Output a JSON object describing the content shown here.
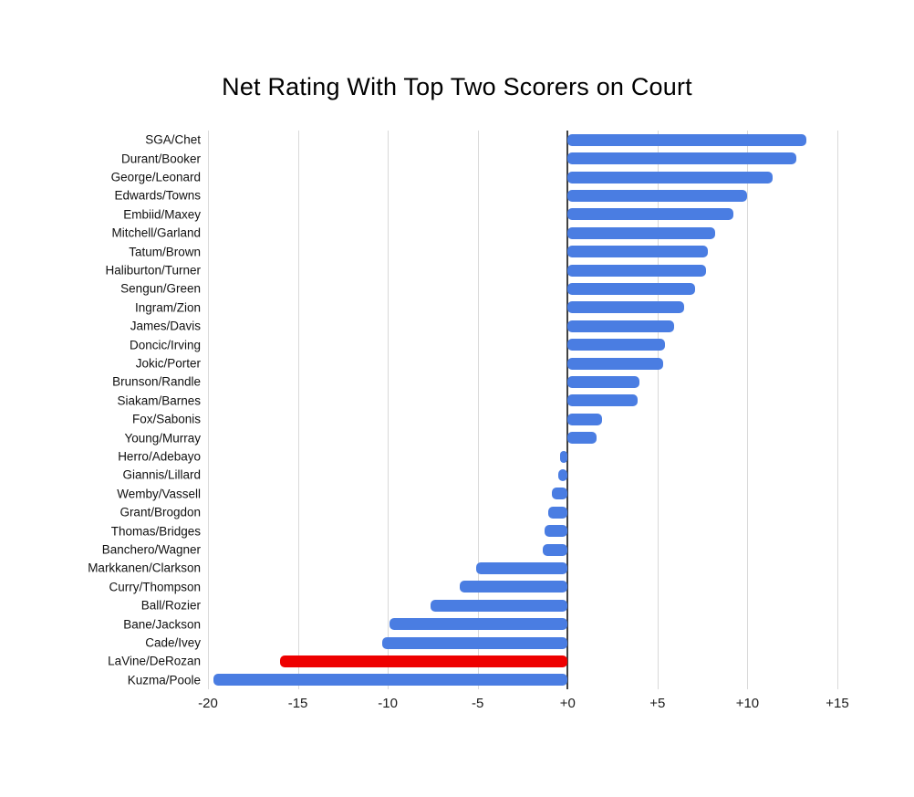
{
  "title": "Net Rating With Top Two Scorers on Court",
  "colors": {
    "bar_default": "#4a7de2",
    "bar_highlight": "#ee0000",
    "gridline": "#d9d9d9",
    "zero_line": "#424242",
    "background": "#ffffff",
    "text": "#000000"
  },
  "chart_data": {
    "type": "bar",
    "orientation": "horizontal",
    "title": "Net Rating With Top Two Scorers on Court",
    "xlabel": "",
    "ylabel": "",
    "xlim": [
      -20,
      15
    ],
    "grid": true,
    "legend_position": "none",
    "x_ticks": [
      {
        "value": -20,
        "label": "-20"
      },
      {
        "value": -15,
        "label": "-15"
      },
      {
        "value": -10,
        "label": "-10"
      },
      {
        "value": -5,
        "label": "-5"
      },
      {
        "value": 0,
        "label": "+0"
      },
      {
        "value": 5,
        "label": "+5"
      },
      {
        "value": 10,
        "label": "+10"
      },
      {
        "value": 15,
        "label": "+15"
      }
    ],
    "highlighted_category": "LaVine/DeRozan",
    "categories": [
      "SGA/Chet",
      "Durant/Booker",
      "George/Leonard",
      "Edwards/Towns",
      "Embiid/Maxey",
      "Mitchell/Garland",
      "Tatum/Brown",
      "Haliburton/Turner",
      "Sengun/Green",
      "Ingram/Zion",
      "James/Davis",
      "Doncic/Irving",
      "Jokic/Porter",
      "Brunson/Randle",
      "Siakam/Barnes",
      "Fox/Sabonis",
      "Young/Murray",
      "Herro/Adebayo",
      "Giannis/Lillard",
      "Wemby/Vassell",
      "Grant/Brogdon",
      "Thomas/Bridges",
      "Banchero/Wagner",
      "Markkanen/Clarkson",
      "Curry/Thompson",
      "Ball/Rozier",
      "Bane/Jackson",
      "Cade/Ivey",
      "LaVine/DeRozan",
      "Kuzma/Poole"
    ],
    "values": [
      13.3,
      12.7,
      11.4,
      10.0,
      9.2,
      8.2,
      7.8,
      7.7,
      7.1,
      6.5,
      5.9,
      5.4,
      5.3,
      4.0,
      3.9,
      1.9,
      1.6,
      -0.4,
      -0.5,
      -0.9,
      -1.1,
      -1.3,
      -1.4,
      -5.1,
      -6.0,
      -7.6,
      -9.9,
      -10.3,
      -16.0,
      -19.7
    ]
  }
}
